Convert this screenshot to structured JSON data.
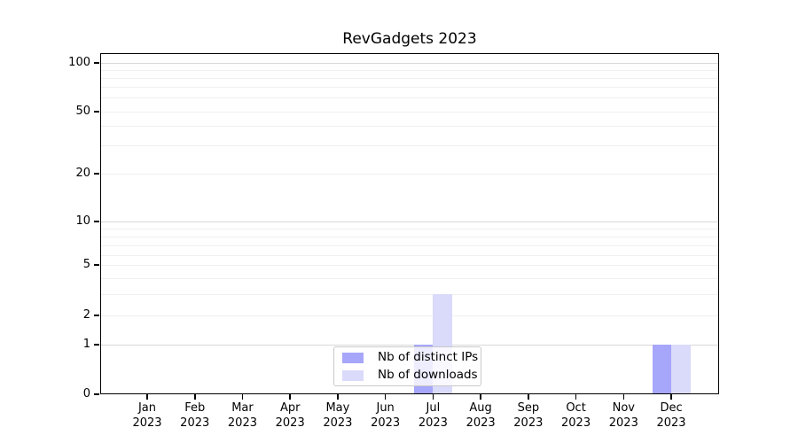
{
  "title": "RevGadgets 2023",
  "chart_data": {
    "type": "bar",
    "categories": [
      "Jan",
      "Feb",
      "Mar",
      "Apr",
      "May",
      "Jun",
      "Jul",
      "Aug",
      "Sep",
      "Oct",
      "Nov",
      "Dec"
    ],
    "year": "2023",
    "series": [
      {
        "name": "Nb of distinct IPs",
        "color": "#a6a6fa",
        "values": [
          0,
          0,
          0,
          0,
          0,
          0,
          1,
          0,
          0,
          0,
          0,
          1
        ]
      },
      {
        "name": "Nb of downloads",
        "color": "#dadafb",
        "values": [
          0,
          0,
          0,
          0,
          0,
          0,
          3,
          0,
          0,
          0,
          0,
          1
        ]
      }
    ],
    "title": "RevGadgets 2023",
    "xlabel": "",
    "ylabel": "",
    "yscale": "symlog",
    "ylim": [
      0,
      110
    ],
    "ytick_labels": [
      "100",
      "50",
      "20",
      "10",
      "5",
      "2",
      "1",
      "0"
    ],
    "grid": "both",
    "legend_position": "lower center"
  },
  "legend": {
    "items": [
      {
        "label": "Nb of distinct IPs",
        "color": "#a6a6fa"
      },
      {
        "label": "Nb of downloads",
        "color": "#dadafb"
      }
    ]
  },
  "colors": {
    "bar_ips": "#a6a6fa",
    "bar_downloads": "#dadafb",
    "grid_major": "#d8d8d8",
    "grid_minor": "#f0f0f0",
    "spine": "#000000"
  }
}
